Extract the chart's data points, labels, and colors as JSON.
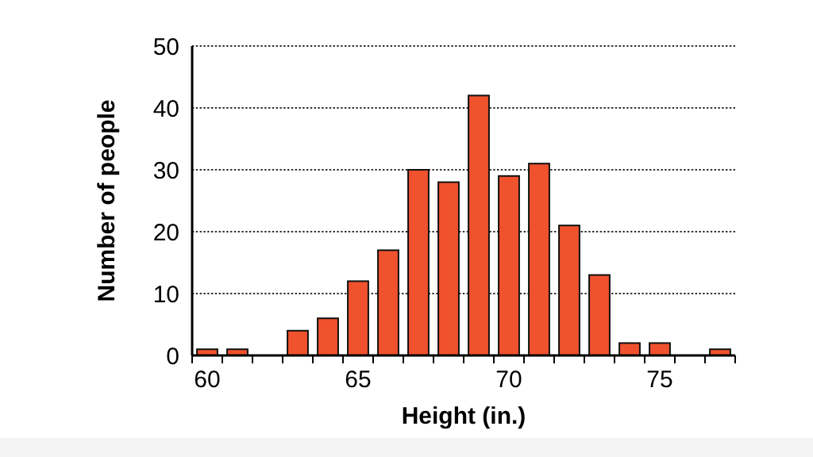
{
  "chart_data": {
    "type": "bar",
    "xlabel": "Height (in.)",
    "ylabel": "Number of people",
    "x": [
      60,
      61,
      62,
      63,
      64,
      65,
      66,
      67,
      68,
      69,
      70,
      71,
      72,
      73,
      74,
      75,
      76,
      77
    ],
    "values": [
      1,
      1,
      0,
      4,
      6,
      12,
      17,
      30,
      28,
      42,
      29,
      31,
      21,
      13,
      2,
      2,
      0,
      1
    ],
    "color": "#f0522e",
    "xlim": [
      59.5,
      77.5
    ],
    "xticks": [
      {
        "value": 59.5,
        "label": null
      },
      60,
      {
        "value": 60.5,
        "label": null
      },
      {
        "value": 61.5,
        "label": null
      },
      {
        "value": 62.5,
        "label": null
      },
      {
        "value": 63.5,
        "label": null
      },
      {
        "value": 64.5,
        "label": null
      },
      65,
      {
        "value": 65.5,
        "label": null
      },
      {
        "value": 66.5,
        "label": null
      },
      {
        "value": 67.5,
        "label": null
      },
      {
        "value": 68.5,
        "label": null
      },
      {
        "value": 69.5,
        "label": null
      },
      70,
      {
        "value": 70.5,
        "label": null
      },
      {
        "value": 71.5,
        "label": null
      },
      {
        "value": 72.5,
        "label": null
      },
      {
        "value": 73.5,
        "label": null
      },
      {
        "value": 74.5,
        "label": null
      },
      75,
      {
        "value": 75.5,
        "label": null
      },
      {
        "value": 76.5,
        "label": null
      },
      {
        "value": 77.5,
        "label": null
      }
    ],
    "ylim": [
      0,
      50
    ],
    "yticks": [
      0,
      10,
      20,
      30,
      40,
      50
    ],
    "grid": "y"
  }
}
